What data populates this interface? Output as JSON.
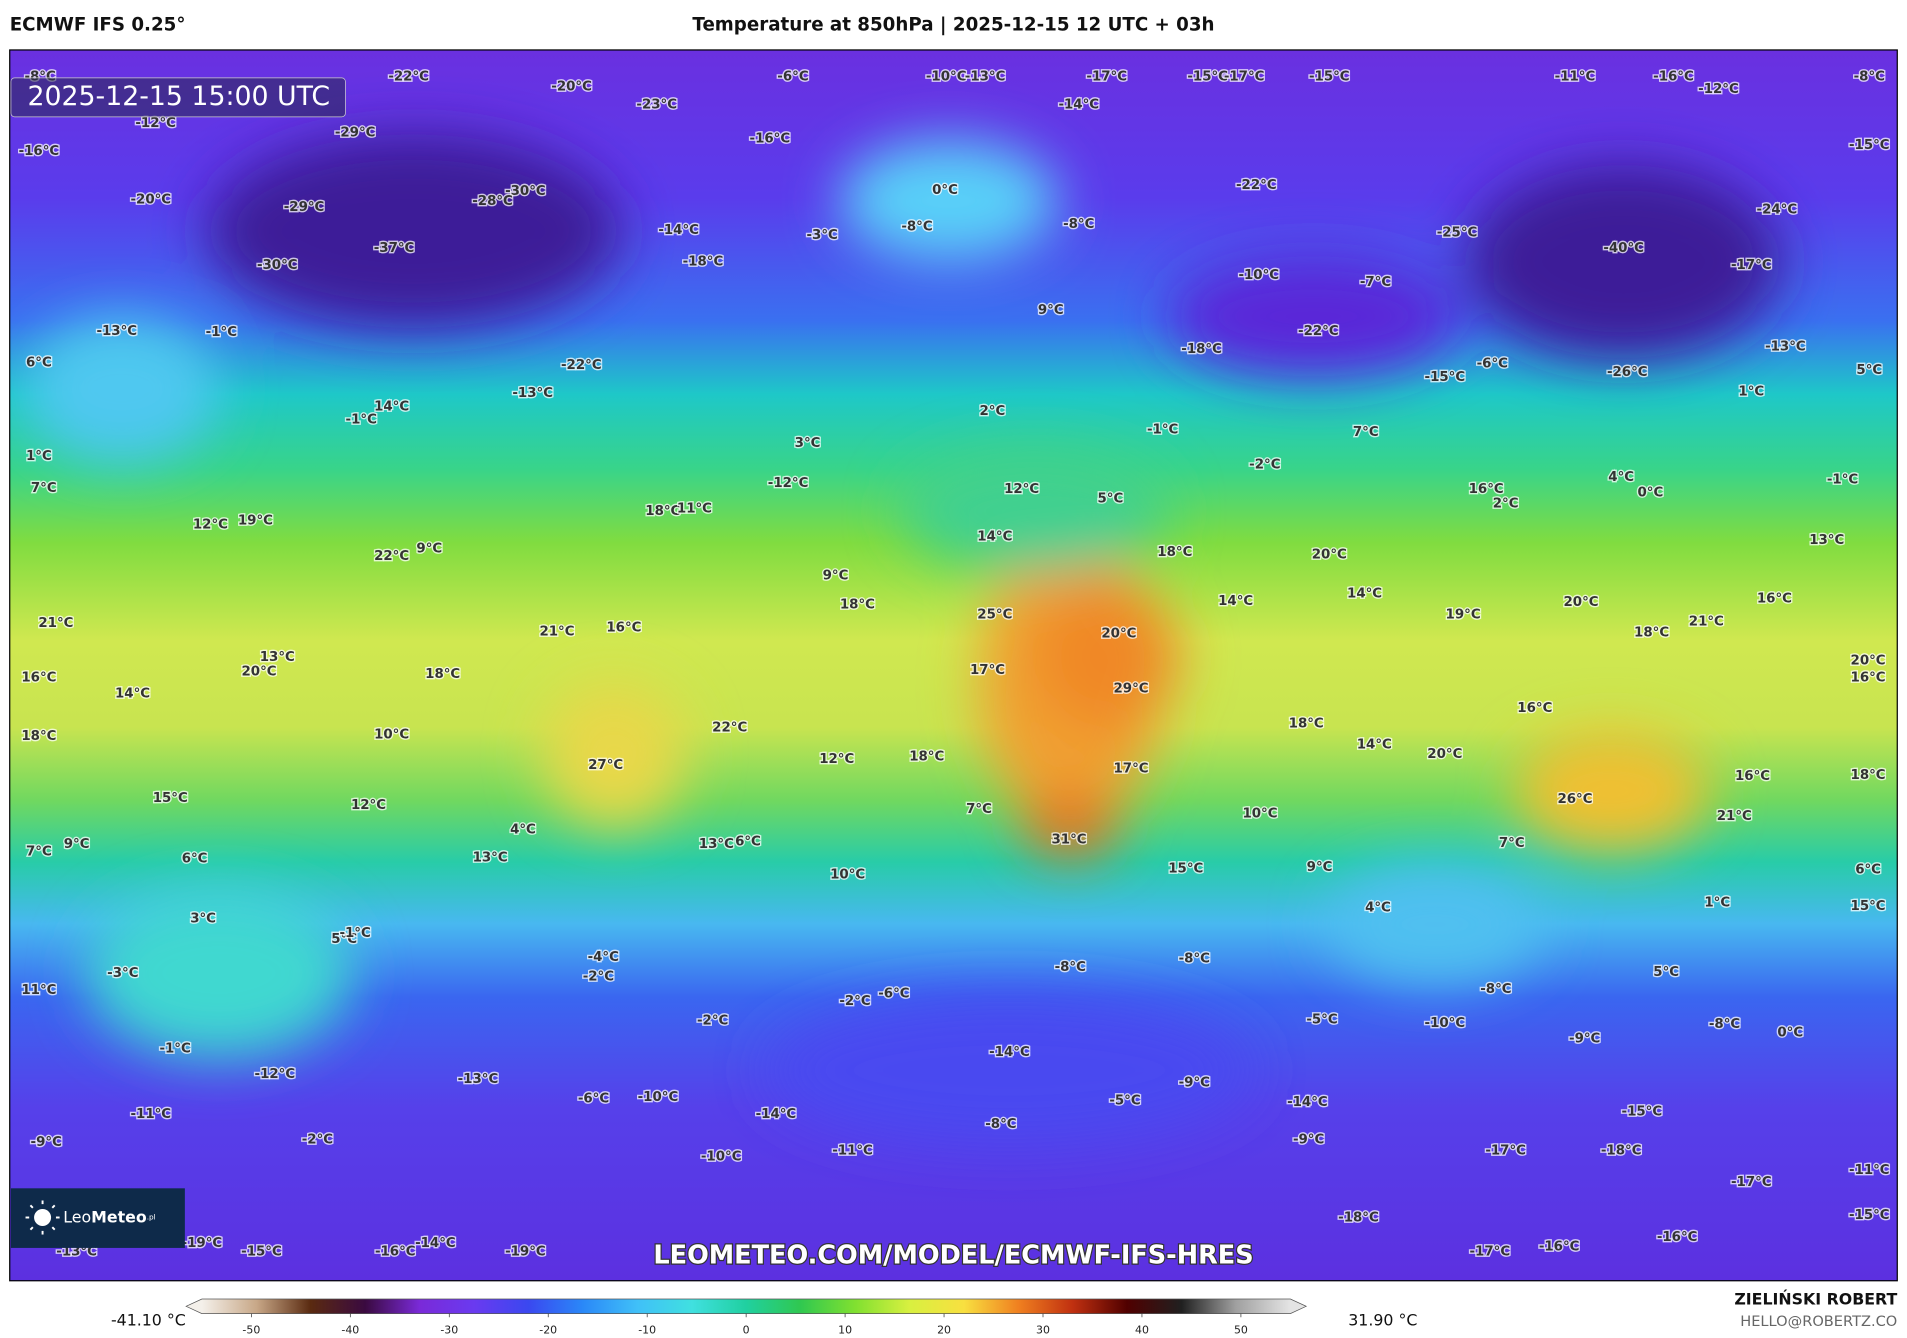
{
  "header": {
    "model": "ECMWF IFS 0.25°",
    "title": "Temperature at 850hPa | 2025-12-15 12 UTC + 03h",
    "valid_time": "2025-12-15 15:00 UTC"
  },
  "map": {
    "labels": [
      "-8°C",
      "-22°C",
      "-20°C",
      "-23°C",
      "-6°C",
      "-10°C",
      "-13°C",
      "-17°C",
      "-15°C",
      "-17°C",
      "-15°C",
      "-11°C",
      "-16°C",
      "-12°C",
      "-8°C",
      "-12°C",
      "-29°C",
      "-16°C",
      "-14°C",
      "-16°C",
      "-15°C",
      "0°C",
      "-22°C",
      "-30°C",
      "-20°C",
      "-29°C",
      "-28°C",
      "-14°C",
      "-3°C",
      "-8°C",
      "-8°C",
      "-25°C",
      "-24°C",
      "-37°C",
      "-40°C",
      "-18°C",
      "-30°C",
      "-10°C",
      "-7°C",
      "-17°C",
      "-13°C",
      "-1°C",
      "-22°C",
      "9°C",
      "-18°C",
      "-13°C",
      "6°C",
      "-22°C",
      "-6°C",
      "-26°C",
      "5°C",
      "-15°C",
      "-13°C",
      "14°C",
      "-1°C",
      "1°C",
      "2°C",
      "-1°C",
      "7°C",
      "3°C",
      "1°C",
      "-2°C",
      "4°C",
      "0°C",
      "-1°C",
      "7°C",
      "-12°C",
      "12°C",
      "5°C",
      "16°C",
      "2°C",
      "18°C",
      "11°C",
      "12°C",
      "19°C",
      "14°C",
      "13°C",
      "22°C",
      "9°C",
      "18°C",
      "20°C",
      "9°C",
      "18°C",
      "14°C",
      "14°C",
      "16°C",
      "20°C",
      "19°C",
      "25°C",
      "21°C",
      "21°C",
      "16°C",
      "20°C",
      "18°C",
      "21°C",
      "13°C",
      "20°C",
      "20°C",
      "17°C",
      "18°C",
      "16°C",
      "16°C",
      "29°C",
      "14°C",
      "16°C",
      "22°C",
      "18°C",
      "18°C",
      "10°C",
      "14°C",
      "20°C",
      "12°C",
      "18°C",
      "27°C",
      "17°C",
      "16°C",
      "18°C",
      "15°C",
      "26°C",
      "12°C",
      "7°C",
      "10°C",
      "21°C",
      "4°C",
      "31°C",
      "13°C",
      "6°C",
      "9°C",
      "7°C",
      "7°C",
      "6°C",
      "13°C",
      "15°C",
      "9°C",
      "10°C",
      "6°C",
      "15°C",
      "1°C",
      "4°C",
      "3°C",
      "5°C",
      "-1°C",
      "-4°C",
      "-8°C",
      "-8°C",
      "5°C",
      "-3°C",
      "-2°C",
      "11°C",
      "-8°C",
      "-6°C",
      "-2°C",
      "-5°C",
      "-10°C",
      "-8°C",
      "-2°C",
      "0°C",
      "-9°C",
      "-1°C",
      "-14°C",
      "-12°C",
      "-13°C",
      "-9°C",
      "-6°C",
      "-10°C",
      "-5°C",
      "-14°C",
      "-15°C",
      "-11°C",
      "-14°C",
      "-8°C",
      "-9°C",
      "-9°C",
      "-2°C",
      "-11°C",
      "-10°C",
      "-17°C",
      "-18°C",
      "-17°C",
      "-11°C",
      "-18°C",
      "-15°C",
      "-16°C",
      "-19°C",
      "-15°C",
      "-13°C",
      "-16°C",
      "-14°C",
      "-19°C",
      "-17°C",
      "-16°C"
    ],
    "watermark": "LEOMETEO.COM/MODEL/ECMWF-IFS-HRES"
  },
  "logo": {
    "part1": "Leo",
    "part2": "Meteo",
    "suffix": ".pl"
  },
  "colorbar": {
    "range": [
      -55,
      55
    ],
    "ticks": [
      -50,
      -40,
      -30,
      -20,
      -10,
      0,
      10,
      20,
      30,
      40,
      50
    ],
    "colors": [
      "#f4f0ea",
      "#c8a888",
      "#5a2a10",
      "#3a0a40",
      "#7a2ad8",
      "#6a3af0",
      "#3a48f0",
      "#2a88f8",
      "#40c0f8",
      "#40e0e0",
      "#20d0a0",
      "#30c850",
      "#80e030",
      "#d8f040",
      "#f8e040",
      "#f08020",
      "#c03010",
      "#500000",
      "#202020",
      "#a0a0a0",
      "#e4e4e4"
    ],
    "min_label": "-41.10 °C",
    "max_label": "31.90 °C"
  },
  "footer": {
    "author": "ZIELIŃSKI ROBERT",
    "contact": "HELLO@ROBERTZ.CO"
  }
}
